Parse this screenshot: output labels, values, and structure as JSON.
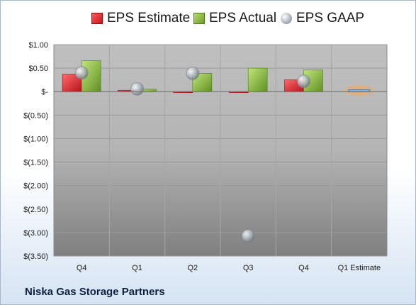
{
  "legend": {
    "estimate": "EPS Estimate",
    "actual": "EPS Actual",
    "gaap": "EPS GAAP"
  },
  "footer": {
    "company": "Niska Gas Storage Partners"
  },
  "colors": {
    "estimate": "#d9232b",
    "actual": "#8cbf3f",
    "gaap": "#a7b0ba",
    "highlight": "#f5a85b",
    "plot_top": "#bfbfbf",
    "plot_bottom": "#7f7f7f"
  },
  "chart_data": {
    "type": "bar",
    "categories": [
      "Q4",
      "Q1",
      "Q2",
      "Q3",
      "Q4",
      "Q1 Estimate"
    ],
    "series": [
      {
        "name": "EPS Estimate",
        "values": [
          0.37,
          0.03,
          -0.01,
          -0.02,
          0.25,
          0.04
        ]
      },
      {
        "name": "EPS Actual",
        "values": [
          0.66,
          0.05,
          0.39,
          0.5,
          0.46,
          null
        ]
      },
      {
        "name": "EPS GAAP",
        "values": [
          0.4,
          0.06,
          0.39,
          -3.07,
          0.22,
          null
        ]
      }
    ],
    "ylim": [
      -3.5,
      1.0
    ],
    "yticks": [
      1.0,
      0.5,
      0,
      -0.5,
      -1.0,
      -1.5,
      -2.0,
      -2.5,
      -3.0,
      -3.5
    ],
    "ytick_labels": [
      "$1.00",
      "$0.50",
      "$-",
      "$(0.50)",
      "$(1.00)",
      "$(1.50)",
      "$(2.00)",
      "$(2.50)",
      "$(3.00)",
      "$(3.50)"
    ],
    "grid": true,
    "legend_position": "top"
  }
}
